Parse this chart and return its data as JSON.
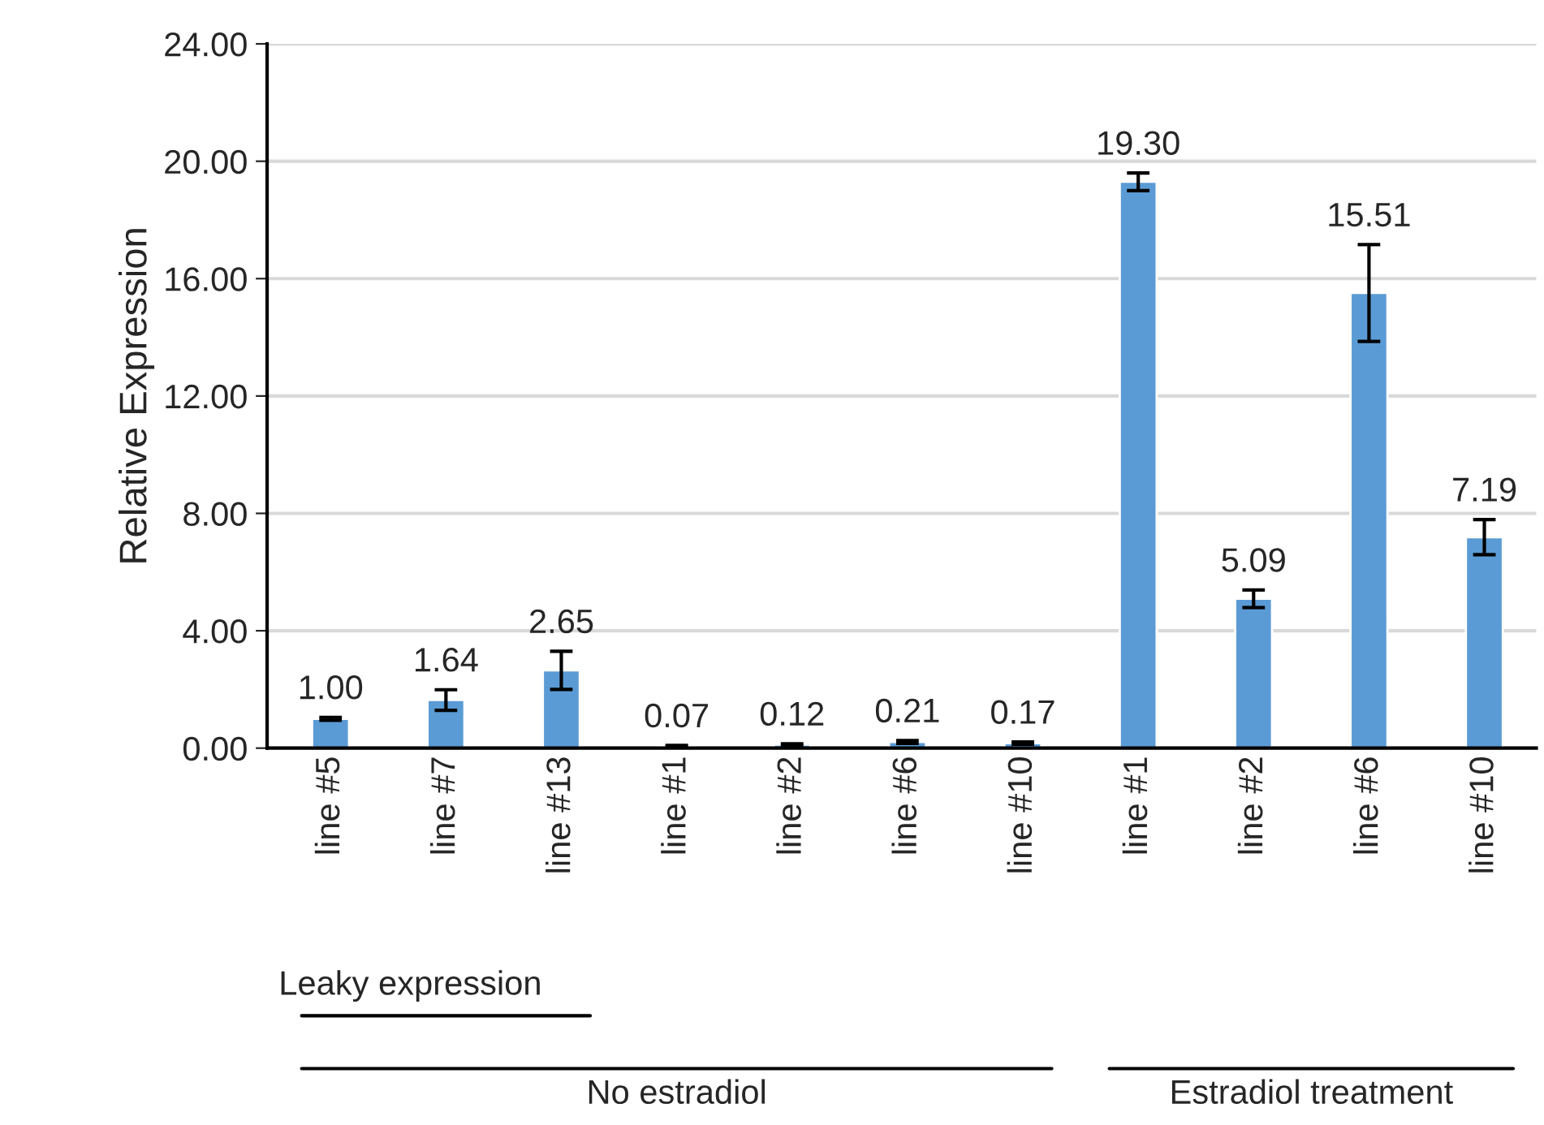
{
  "chart_data": {
    "type": "bar",
    "ylabel": "Relative Expression",
    "categories": [
      "line #5",
      "line #7",
      "line #13",
      "line #1",
      "line #2",
      "line #6",
      "line #10",
      "line #1",
      "line #2",
      "line #6",
      "line #10"
    ],
    "values": [
      1.0,
      1.64,
      2.65,
      0.07,
      0.12,
      0.21,
      0.17,
      19.3,
      5.09,
      15.51,
      7.19
    ],
    "errors": [
      0.05,
      0.35,
      0.65,
      0.02,
      0.03,
      0.05,
      0.04,
      0.3,
      0.3,
      1.65,
      0.6
    ],
    "value_labels": [
      "1.00",
      "1.64",
      "2.65",
      "0.07",
      "0.12",
      "0.21",
      "0.17",
      "19.30",
      "5.09",
      "15.51",
      "7.19"
    ],
    "color": "#5b9bd5",
    "ylim": [
      0,
      24
    ],
    "yticks": [
      {
        "value": 0,
        "label": "0.00"
      },
      {
        "value": 4,
        "label": "4.00"
      },
      {
        "value": 8,
        "label": "8.00"
      },
      {
        "value": 12,
        "label": "12.00"
      },
      {
        "value": 16,
        "label": "16.00"
      },
      {
        "value": 20,
        "label": "20.00"
      },
      {
        "value": 24,
        "label": "24.00"
      }
    ],
    "grid": "y",
    "annotations": [
      "Leaky expression",
      "No estradiol",
      "Estradiol treatment"
    ]
  }
}
